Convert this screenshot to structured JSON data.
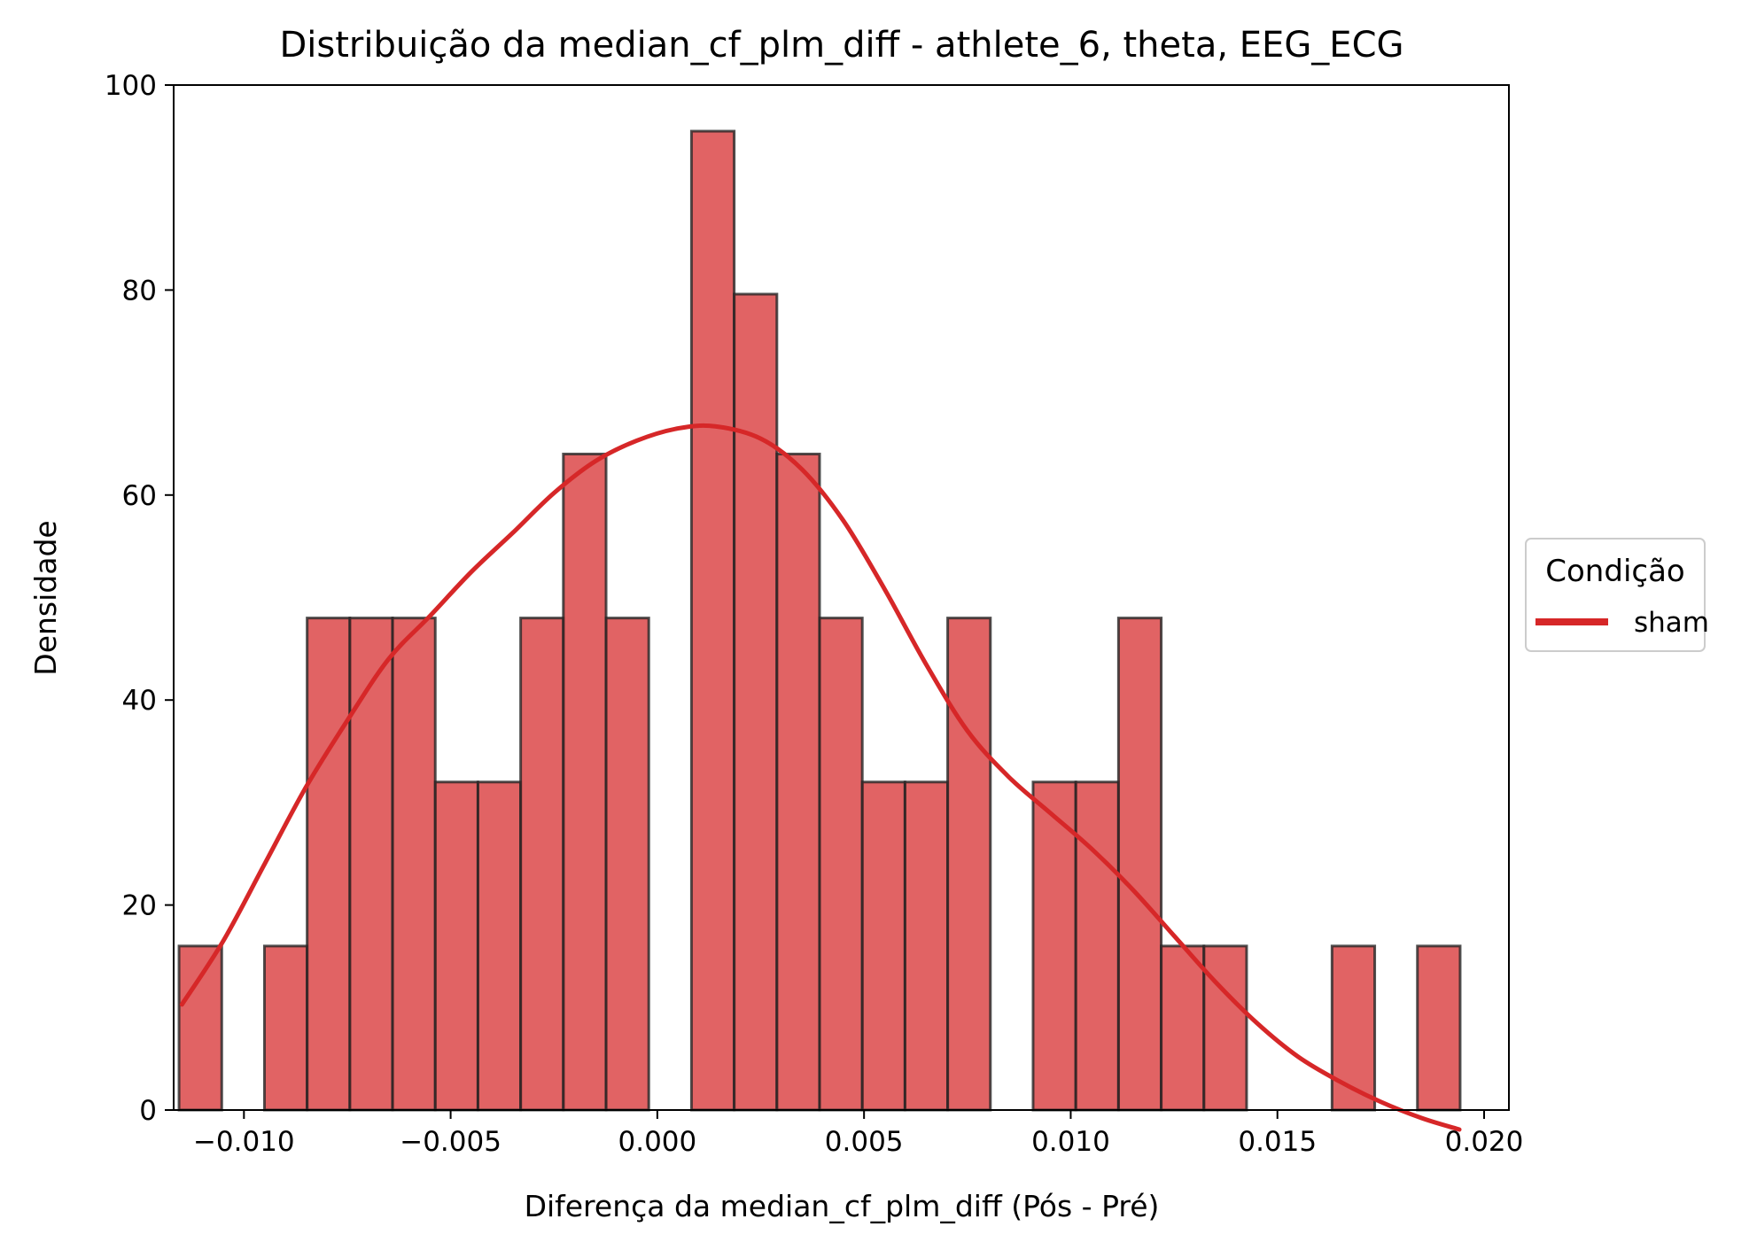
{
  "chart_data": {
    "type": "bar",
    "title": "Distribuição da median_cf_plm_diff - athlete_6, theta, EEG_ECG",
    "xlabel": "Diferença da median_cf_plm_diff (Pós - Pré)",
    "ylabel": "Densidade",
    "xlim": [
      -0.0117,
      0.0206
    ],
    "ylim": [
      0,
      100
    ],
    "x_ticks": [
      -0.01,
      -0.005,
      0.0,
      0.005,
      0.01,
      0.015,
      0.02
    ],
    "x_tick_labels": [
      "−0.010",
      "−0.005",
      "0.000",
      "0.005",
      "0.010",
      "0.015",
      "0.020"
    ],
    "y_ticks": [
      0,
      20,
      40,
      60,
      80,
      100
    ],
    "y_tick_labels": [
      "0",
      "20",
      "40",
      "60",
      "80",
      "100"
    ],
    "grid": false,
    "bin_start": -0.01157,
    "bin_width": 0.001033,
    "series": [
      {
        "name": "sham",
        "type": "histogram",
        "color": "#d62728",
        "values": [
          16,
          0,
          16,
          48,
          48,
          48,
          32,
          32,
          48,
          64,
          48,
          0,
          95.5,
          79.6,
          64,
          48,
          32,
          32,
          48,
          0,
          32,
          32,
          48,
          16,
          16,
          0,
          0,
          16,
          0,
          16
        ]
      },
      {
        "name": "sham",
        "type": "kde",
        "color": "#d62728",
        "points": [
          [
            -0.0115,
            10.3
          ],
          [
            -0.0105,
            16.5
          ],
          [
            -0.0095,
            24
          ],
          [
            -0.0085,
            31.5
          ],
          [
            -0.0075,
            38
          ],
          [
            -0.0065,
            44
          ],
          [
            -0.0055,
            48.2
          ],
          [
            -0.0045,
            52.5
          ],
          [
            -0.0035,
            56.3
          ],
          [
            -0.0025,
            60.2
          ],
          [
            -0.0015,
            63.3
          ],
          [
            -0.0005,
            65.3
          ],
          [
            0.0005,
            66.5
          ],
          [
            0.0014,
            66.7
          ],
          [
            0.0025,
            65.5
          ],
          [
            0.0035,
            62.5
          ],
          [
            0.0045,
            57.5
          ],
          [
            0.0055,
            50.8
          ],
          [
            0.0065,
            43.5
          ],
          [
            0.0075,
            37
          ],
          [
            0.0085,
            32.5
          ],
          [
            0.0095,
            29
          ],
          [
            0.0105,
            25.5
          ],
          [
            0.0115,
            21.5
          ],
          [
            0.0125,
            17
          ],
          [
            0.0135,
            12.5
          ],
          [
            0.0145,
            8.5
          ],
          [
            0.0155,
            5.2
          ],
          [
            0.0165,
            2.8
          ],
          [
            0.0175,
            0.8
          ],
          [
            0.0185,
            -0.8
          ],
          [
            0.0194,
            -1.9
          ]
        ]
      }
    ],
    "legend": {
      "title": "Condição",
      "entries": [
        {
          "label": "sham",
          "color": "#d62728"
        }
      ],
      "placement": "center-right-outside"
    }
  }
}
